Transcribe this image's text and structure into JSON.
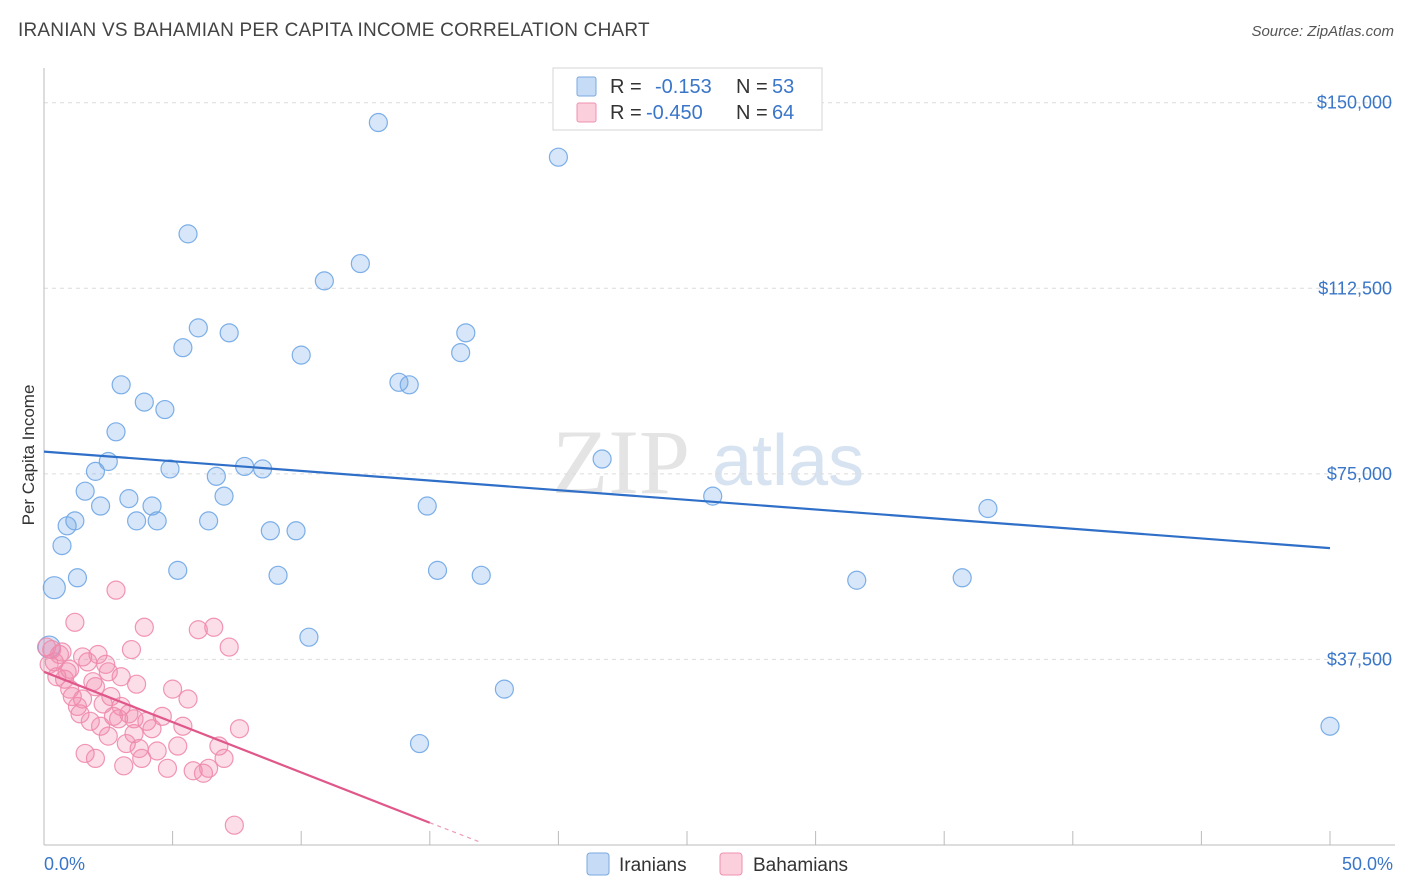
{
  "header": {
    "title": "IRANIAN VS BAHAMIAN PER CAPITA INCOME CORRELATION CHART",
    "source": "Source: ZipAtlas.com"
  },
  "watermark": {
    "zip": "ZIP",
    "atlas": "atlas"
  },
  "legend": {
    "rows": [
      {
        "r_label": "R =",
        "r_value": "-0.153",
        "n_label": "N =",
        "n_value": "53"
      },
      {
        "r_label": "R =",
        "r_value": "-0.450",
        "n_label": "N =",
        "n_value": "64"
      }
    ]
  },
  "chart_data": {
    "type": "scatter",
    "ylabel": "Per Capita Income",
    "xlabel": "",
    "xlim": [
      0,
      50
    ],
    "ylim": [
      0,
      155000
    ],
    "x_tick_labels": [
      "0.0%",
      "50.0%"
    ],
    "y_ticks": [
      37500,
      75000,
      112500,
      150000
    ],
    "y_tick_labels": [
      "$37,500",
      "$75,000",
      "$112,500",
      "$150,000"
    ],
    "grid": true,
    "legend_position": "top-center",
    "series": [
      {
        "name": "Iranians",
        "color": "#6fa6e6",
        "line_color": "#2f6fc8",
        "trend": {
          "x": [
            0,
            50
          ],
          "y": [
            79500,
            60000
          ]
        },
        "points": [
          [
            0.4,
            52000
          ],
          [
            0.7,
            60500
          ],
          [
            0.9,
            64500
          ],
          [
            1.2,
            65500
          ],
          [
            1.3,
            54000
          ],
          [
            1.6,
            71500
          ],
          [
            2.0,
            75500
          ],
          [
            2.2,
            68500
          ],
          [
            2.5,
            77500
          ],
          [
            2.8,
            83500
          ],
          [
            3.0,
            93000
          ],
          [
            3.3,
            70000
          ],
          [
            3.6,
            65500
          ],
          [
            3.9,
            89500
          ],
          [
            4.2,
            68500
          ],
          [
            4.4,
            65500
          ],
          [
            4.7,
            88000
          ],
          [
            4.9,
            76000
          ],
          [
            5.2,
            55500
          ],
          [
            5.4,
            100500
          ],
          [
            5.6,
            123500
          ],
          [
            6.0,
            104500
          ],
          [
            6.4,
            65500
          ],
          [
            6.7,
            74500
          ],
          [
            7.0,
            70500
          ],
          [
            7.2,
            103500
          ],
          [
            7.8,
            76500
          ],
          [
            8.5,
            76000
          ],
          [
            8.8,
            63500
          ],
          [
            9.1,
            54500
          ],
          [
            9.8,
            63500
          ],
          [
            10.0,
            99000
          ],
          [
            10.3,
            42000
          ],
          [
            10.9,
            114000
          ],
          [
            12.3,
            117500
          ],
          [
            13.0,
            146000
          ],
          [
            13.8,
            93500
          ],
          [
            14.2,
            93000
          ],
          [
            14.6,
            20500
          ],
          [
            14.9,
            68500
          ],
          [
            15.3,
            55500
          ],
          [
            16.2,
            99500
          ],
          [
            16.4,
            103500
          ],
          [
            17.0,
            54500
          ],
          [
            17.9,
            31500
          ],
          [
            20.0,
            139000
          ],
          [
            21.7,
            78000
          ],
          [
            26.0,
            70500
          ],
          [
            31.6,
            53500
          ],
          [
            35.7,
            54000
          ],
          [
            36.7,
            68000
          ],
          [
            50.0,
            24000
          ],
          [
            0.2,
            40000
          ]
        ]
      },
      {
        "name": "Bahamians",
        "color": "#f08aab",
        "line_color": "#e0578a",
        "trend": {
          "x": [
            0,
            15
          ],
          "y": [
            35000,
            4500
          ]
        },
        "trend_dashed": {
          "x": [
            15,
            17
          ],
          "y": [
            4500,
            500
          ]
        },
        "points": [
          [
            0.1,
            40000
          ],
          [
            0.2,
            36500
          ],
          [
            0.3,
            39500
          ],
          [
            0.4,
            37000
          ],
          [
            0.5,
            34000
          ],
          [
            0.6,
            38500
          ],
          [
            0.7,
            39000
          ],
          [
            0.8,
            33500
          ],
          [
            0.9,
            35000
          ],
          [
            1.0,
            31500
          ],
          [
            1.1,
            30000
          ],
          [
            1.2,
            45000
          ],
          [
            1.3,
            28000
          ],
          [
            1.4,
            26500
          ],
          [
            1.5,
            29500
          ],
          [
            1.6,
            18500
          ],
          [
            1.7,
            37000
          ],
          [
            1.8,
            25000
          ],
          [
            1.9,
            33000
          ],
          [
            2.0,
            17500
          ],
          [
            2.1,
            38500
          ],
          [
            2.2,
            24000
          ],
          [
            2.3,
            28500
          ],
          [
            2.4,
            36500
          ],
          [
            2.5,
            22000
          ],
          [
            2.6,
            30000
          ],
          [
            2.7,
            26000
          ],
          [
            2.8,
            51500
          ],
          [
            2.9,
            25500
          ],
          [
            3.0,
            34000
          ],
          [
            3.1,
            16000
          ],
          [
            3.2,
            20500
          ],
          [
            3.3,
            26500
          ],
          [
            3.4,
            39500
          ],
          [
            3.5,
            22500
          ],
          [
            3.6,
            32500
          ],
          [
            3.7,
            19500
          ],
          [
            3.8,
            17500
          ],
          [
            3.9,
            44000
          ],
          [
            4.0,
            25000
          ],
          [
            4.2,
            23500
          ],
          [
            4.4,
            19000
          ],
          [
            4.6,
            26000
          ],
          [
            4.8,
            15500
          ],
          [
            5.0,
            31500
          ],
          [
            5.2,
            20000
          ],
          [
            5.4,
            24000
          ],
          [
            5.6,
            29500
          ],
          [
            5.8,
            15000
          ],
          [
            6.0,
            43500
          ],
          [
            6.2,
            14500
          ],
          [
            6.4,
            15500
          ],
          [
            6.6,
            44000
          ],
          [
            6.8,
            20000
          ],
          [
            7.0,
            17500
          ],
          [
            7.2,
            40000
          ],
          [
            7.4,
            4000
          ],
          [
            7.6,
            23500
          ],
          [
            1.0,
            35500
          ],
          [
            1.5,
            38000
          ],
          [
            2.0,
            32000
          ],
          [
            2.5,
            35000
          ],
          [
            3.0,
            28000
          ],
          [
            3.5,
            25500
          ]
        ]
      }
    ]
  }
}
